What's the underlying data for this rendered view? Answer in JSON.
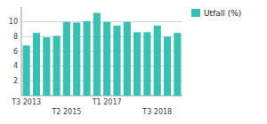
{
  "chart_data": {
    "type": "bar",
    "categories": [
      "T3 2013",
      null,
      null,
      null,
      "T2 2015",
      null,
      null,
      null,
      "T1 2017",
      null,
      null,
      null,
      null,
      "T3 2018",
      null,
      null
    ],
    "series": [
      {
        "name": "Utfall (%)",
        "color": "#3bbfb2",
        "values": [
          6.8,
          8.5,
          7.9,
          8.1,
          10.0,
          9.9,
          10.1,
          11.2,
          10.0,
          9.5,
          10.0,
          8.6,
          8.6,
          9.5,
          8.0,
          8.5
        ]
      }
    ],
    "ylim": [
      0,
      12
    ],
    "yticks": [
      2,
      4,
      6,
      8,
      10
    ],
    "grid": true,
    "legend": "right"
  }
}
